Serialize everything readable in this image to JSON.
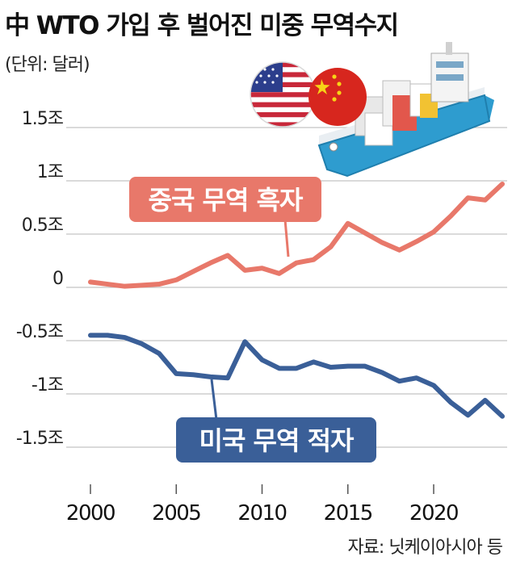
{
  "title": "中 WTO 가입 후 벌어진 미중 무역수지",
  "unit": "(단위: 달러)",
  "source": "자료: 닛케이아시아 등",
  "chart_data": {
    "type": "line",
    "ytick_labels": [
      "1.5조",
      "1조",
      "0.5조",
      "0",
      "-0.5조",
      "-1조",
      "-1.5조"
    ],
    "ytick_values": [
      1.5,
      1.0,
      0.5,
      0,
      -0.5,
      -1.0,
      -1.5
    ],
    "xtick_labels": [
      "2000",
      "2005",
      "2010",
      "2015",
      "2020"
    ],
    "xtick_values": [
      2000,
      2005,
      2010,
      2015,
      2020
    ],
    "xlim": [
      2000,
      2024
    ],
    "ylim": [
      -1.5,
      1.5
    ],
    "x": [
      2000,
      2001,
      2002,
      2003,
      2004,
      2005,
      2006,
      2007,
      2008,
      2009,
      2010,
      2011,
      2012,
      2013,
      2014,
      2015,
      2016,
      2017,
      2018,
      2019,
      2020,
      2021,
      2022,
      2023,
      2024
    ],
    "grid": "horizontal",
    "series": [
      {
        "name": "중국 무역 흑자",
        "color": "#e8786a",
        "values": [
          0.05,
          0.03,
          0.01,
          0.02,
          0.03,
          0.07,
          0.15,
          0.23,
          0.3,
          0.16,
          0.18,
          0.13,
          0.23,
          0.26,
          0.38,
          0.6,
          0.51,
          0.42,
          0.35,
          0.43,
          0.52,
          0.67,
          0.84,
          0.82,
          0.97
        ]
      },
      {
        "name": "미국 무역 적자",
        "color": "#3a5f98",
        "values": [
          -0.45,
          -0.45,
          -0.47,
          -0.53,
          -0.62,
          -0.81,
          -0.82,
          -0.84,
          -0.85,
          -0.51,
          -0.68,
          -0.76,
          -0.76,
          -0.7,
          -0.75,
          -0.74,
          -0.74,
          -0.8,
          -0.88,
          -0.85,
          -0.92,
          -1.08,
          -1.2,
          -1.06,
          -1.21
        ]
      }
    ]
  }
}
